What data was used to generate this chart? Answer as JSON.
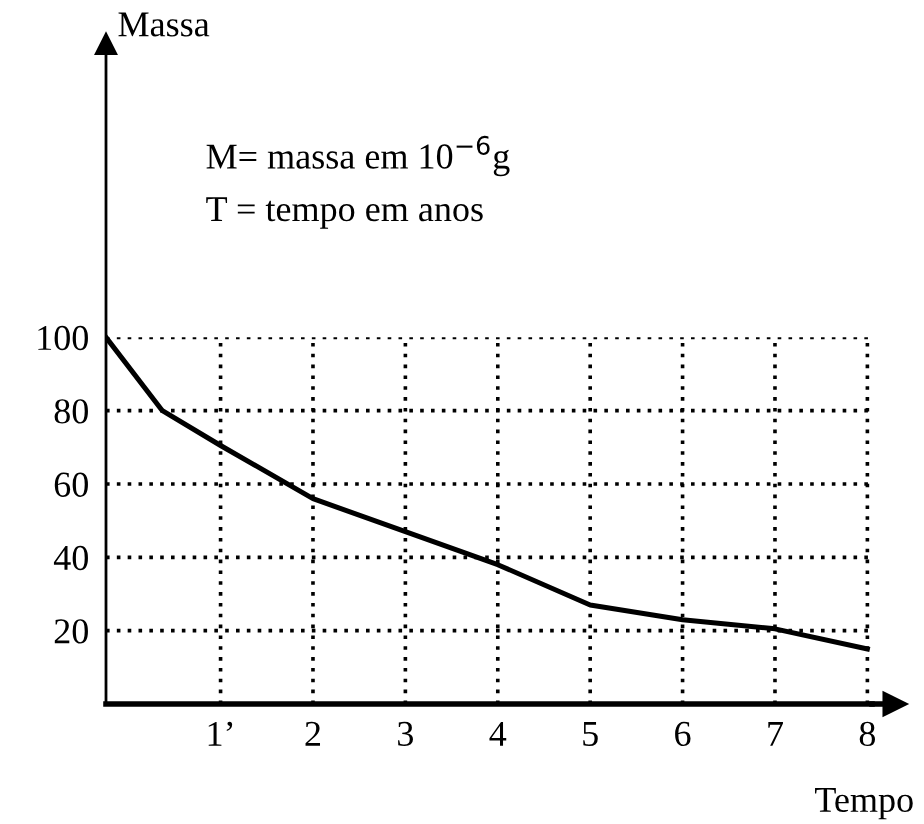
{
  "chart_data": {
    "type": "line",
    "xlabel": "Tempo",
    "ylabel": "Massa",
    "annotations": [
      "M= massa em 10$^{−6}$g",
      "T = tempo em anos"
    ],
    "x": [
      -0.24,
      0.37,
      1,
      2,
      3,
      4,
      5,
      6,
      7,
      8
    ],
    "series": [
      {
        "color": "#000000",
        "values": [
          100,
          80,
          70.5,
          56,
          47,
          38,
          27,
          23,
          20.5,
          15
        ]
      }
    ],
    "xlim": [
      -0.24,
      8.05
    ],
    "ylim": [
      0,
      180
    ],
    "xticks": [
      {
        "value": 1,
        "label": "1’"
      },
      2,
      3,
      4,
      5,
      6,
      7,
      8
    ],
    "yticks": [
      20,
      40,
      60,
      80,
      100
    ],
    "grid": true,
    "marker": "none",
    "line_style": "solid"
  }
}
